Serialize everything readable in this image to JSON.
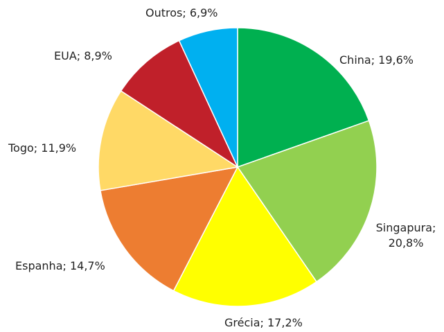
{
  "chart_data": {
    "type": "pie",
    "categories": [
      "China",
      "Singapura",
      "Grécia",
      "Espanha",
      "Togo",
      "EUA",
      "Outros"
    ],
    "values": [
      19.6,
      20.8,
      17.2,
      14.7,
      11.9,
      8.9,
      6.9
    ],
    "value_labels": [
      "China; 19,6%",
      "Singapura; 20,8%",
      "Grécia; 17,2%",
      "Espanha; 14,7%",
      "Togo; 11,9%",
      "EUA; 8,9%",
      "Outros; 6,9%"
    ],
    "colors": [
      "#00b050",
      "#92d050",
      "#ffff00",
      "#ed7d31",
      "#ffd966",
      "#c0202a",
      "#00b0f0"
    ]
  }
}
